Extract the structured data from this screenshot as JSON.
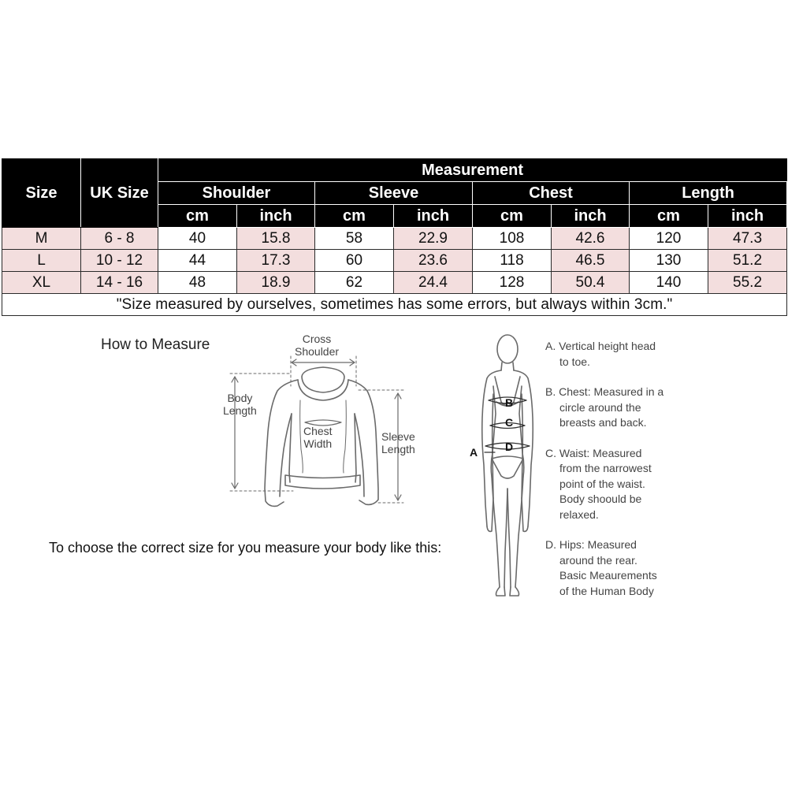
{
  "table": {
    "headers": {
      "size": "Size",
      "uk_size": "UK Size",
      "measurement": "Measurement",
      "groups": [
        "Shoulder",
        "Sleeve",
        "Chest",
        "Length"
      ],
      "units": [
        "cm",
        "inch",
        "cm",
        "inch",
        "cm",
        "inch",
        "cm",
        "inch"
      ]
    },
    "rows": [
      {
        "size": "M",
        "uk": "6 - 8",
        "values": [
          "40",
          "15.8",
          "58",
          "22.9",
          "108",
          "42.6",
          "120",
          "47.3"
        ]
      },
      {
        "size": "L",
        "uk": "10 - 12",
        "values": [
          "44",
          "17.3",
          "60",
          "23.6",
          "118",
          "46.5",
          "130",
          "51.2"
        ]
      },
      {
        "size": "XL",
        "uk": "14 - 16",
        "values": [
          "48",
          "18.9",
          "62",
          "24.4",
          "128",
          "50.4",
          "140",
          "55.2"
        ]
      }
    ],
    "note": "\"Size measured by ourselves, sometimes has some errors, but always within 3cm.\"",
    "colors": {
      "header_bg": "#000000",
      "pink_cell": "#f3dede"
    }
  },
  "guide": {
    "title": "How to Measure",
    "choose_text": "To choose the correct size for you measure your body like this:",
    "garment_labels": {
      "cross_shoulder": [
        "Cross",
        "Shoulder"
      ],
      "body_length": [
        "Body",
        "Length"
      ],
      "chest_width": [
        "Chest",
        "Width"
      ],
      "sleeve_length": [
        "Sleeve",
        "Length"
      ]
    },
    "body_letters": {
      "a": "A",
      "b": "B",
      "c": "C",
      "d": "D"
    },
    "steps": [
      {
        "first": "A. Vertical height head",
        "rest": [
          "to toe."
        ]
      },
      {
        "first": "B. Chest: Measured in a",
        "rest": [
          "circle around the",
          "breasts and back."
        ]
      },
      {
        "first": "C. Waist: Measured",
        "rest": [
          "from the narrowest",
          "point of the waist.",
          "Body shoould be",
          "relaxed."
        ]
      },
      {
        "first": "D. Hips: Measured",
        "rest": [
          "around the rear.",
          "Basic Meaurements",
          "of the Human Body"
        ]
      }
    ]
  }
}
